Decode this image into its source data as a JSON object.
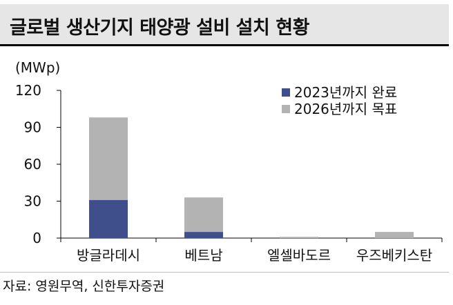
{
  "chart_data": {
    "type": "bar",
    "stacked": true,
    "title": "글로벌 생산기지 태양광 설비 설치 현황",
    "ylabel": "(MWp)",
    "categories": [
      "방글라데시",
      "베트남",
      "엘셀바도르",
      "우즈베키스탄"
    ],
    "series": [
      {
        "name": "2023년까지 완료",
        "values": [
          31,
          5,
          0,
          0
        ],
        "color": "#3f4f8c"
      },
      {
        "name": "2026년까지 목표",
        "values": [
          67,
          28,
          1,
          5
        ],
        "color": "#b3b3b3"
      }
    ],
    "ylim": [
      0,
      120
    ],
    "yticks": [
      "0",
      "30",
      "60",
      "90",
      "120"
    ],
    "grid": false,
    "legend": "top-right"
  },
  "source": "자료: 영원무역, 신한투자증권"
}
